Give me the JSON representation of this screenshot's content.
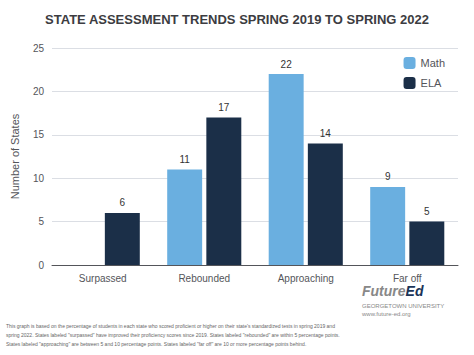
{
  "chart_data": {
    "type": "bar",
    "title": "STATE ASSESSMENT TRENDS SPRING 2019 TO SPRING 2022",
    "categories": [
      "Surpassed",
      "Rebounded",
      "Approaching",
      "Far off"
    ],
    "series": [
      {
        "name": "Math",
        "color": "#6aafe0",
        "values": [
          null,
          11,
          22,
          9
        ]
      },
      {
        "name": "ELA",
        "color": "#1b2f48",
        "values": [
          6,
          17,
          14,
          5
        ]
      }
    ],
    "ylabel": "Number of States",
    "ylim": [
      0,
      25
    ],
    "yticks": [
      0,
      5,
      10,
      15,
      20,
      25
    ],
    "grid": true,
    "legend": "upper right",
    "data_labels": true,
    "annotations": [
      "This graph is based on the percentage of students in each state who scored proficient or higher on their state's standardized tests in spring 2019 and",
      "spring 2022. States labeled \"surpassed\" have improved their proficiency scores since 2019. States labeled \"rebounded\" are within 5 percentage points.",
      "States labeled \"approaching\" are between 5 and 10 percentage points. States labeled \"far off\" are 10 or more percentage points behind.",
      "Future",
      "Ed",
      "GEORGETOWN UNIVERSITY",
      "www.future-ed.org"
    ]
  }
}
